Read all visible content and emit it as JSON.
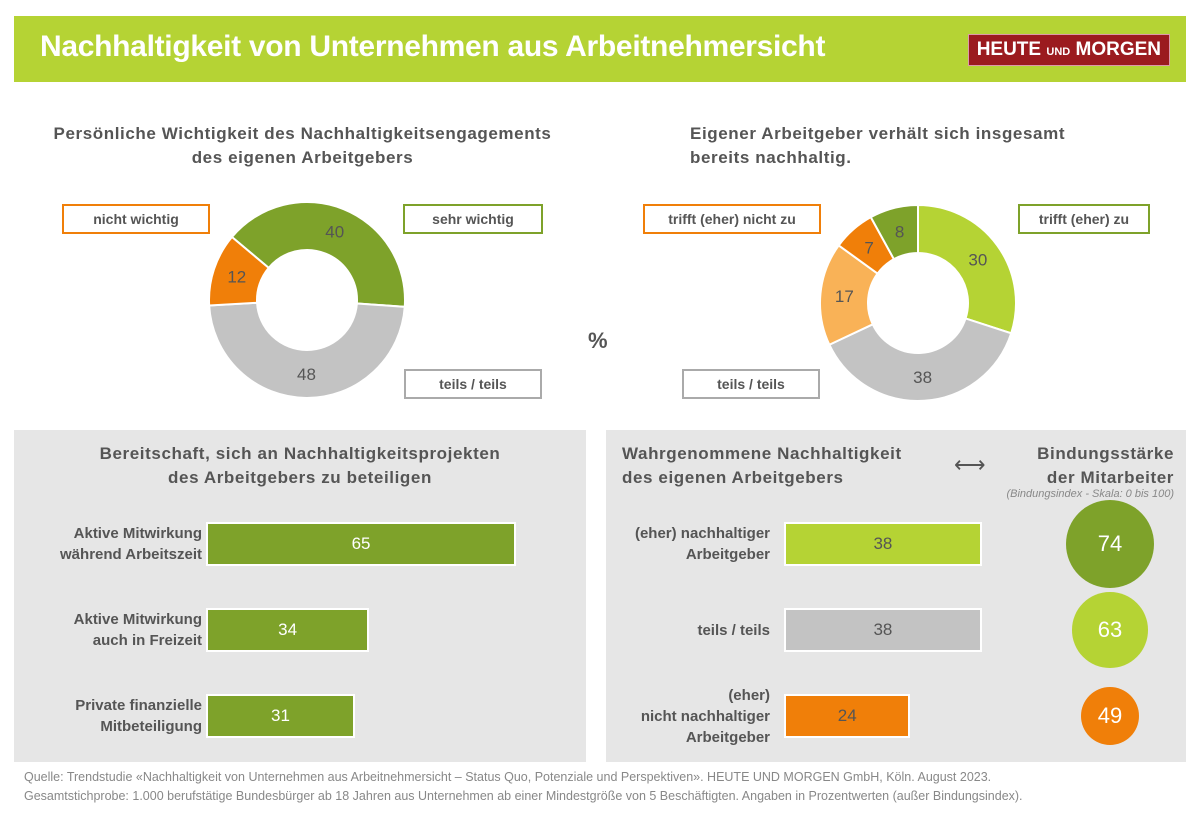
{
  "header": {
    "title": "Nachhaltigkeit von Unternehmen aus Arbeitnehmersicht",
    "logo": "HEUTE UND MORGEN"
  },
  "colors": {
    "header_green": "#b5d334",
    "dark_green": "#7ea22a",
    "light_green": "#b5d334",
    "orange": "#f07f09",
    "light_orange": "#f9b257",
    "gray": "#c3c3c3",
    "panel": "#e6e6e6"
  },
  "percent_sign": "%",
  "chart_data": [
    {
      "type": "pie",
      "variant": "donut",
      "title": "Persönliche Wichtigkeit des Nachhaltigkeitsengagements des eigenen Arbeitgebers",
      "title_lines": [
        "Persönliche Wichtigkeit des Nachhaltigkeitsengagements",
        "des eigenen Arbeitgebers"
      ],
      "slices": [
        {
          "label": "sehr wichtig",
          "value": 40,
          "color": "#7ea22a"
        },
        {
          "label": "teils / teils",
          "value": 48,
          "color": "#c3c3c3"
        },
        {
          "label": "nicht wichtig",
          "value": 12,
          "color": "#f07f09"
        }
      ]
    },
    {
      "type": "pie",
      "variant": "donut",
      "title": "Eigener Arbeitgeber verhält sich insgesamt bereits nachhaltig.",
      "title_lines": [
        "Eigener Arbeitgeber verhält sich insgesamt",
        "bereits nachhaltig."
      ],
      "legend": [
        "trifft (eher) nicht zu",
        "trifft (eher) zu",
        "teils / teils"
      ],
      "slices": [
        {
          "value": 30,
          "color": "#b5d334"
        },
        {
          "value": 38,
          "color": "#c3c3c3"
        },
        {
          "value": 17,
          "color": "#f9b257"
        },
        {
          "value": 7,
          "color": "#f07f09"
        },
        {
          "value": 8,
          "color": "#7ea22a"
        }
      ]
    },
    {
      "type": "bar",
      "orientation": "horizontal",
      "title_lines": [
        "Bereitschaft, sich an Nachhaltigkeitsprojekten",
        "des Arbeitgebers  zu beteiligen"
      ],
      "categories": [
        [
          "Aktive Mitwirkung",
          "während Arbeitszeit"
        ],
        [
          "Aktive Mitwirkung",
          "auch in Freizeit"
        ],
        [
          "Private finanzielle",
          "Mitbeteiligung"
        ]
      ],
      "values": [
        65,
        34,
        31
      ],
      "color": "#7ea22a"
    },
    {
      "type": "bar",
      "orientation": "horizontal",
      "title_lines": [
        "Wahrgenommene  Nachhaltigkeit",
        "des eigenen  Arbeitgebers"
      ],
      "right_title_lines": [
        "Bindungsstärke",
        "der Mitarbeiter"
      ],
      "right_subtitle": "(Bindungsindex - Skala: 0 bis 100)",
      "categories": [
        [
          "(eher) nachhaltiger",
          "Arbeitgeber"
        ],
        [
          "teils / teils"
        ],
        [
          "(eher)",
          "nicht nachhaltiger",
          "Arbeitgeber"
        ]
      ],
      "values": [
        38,
        38,
        24
      ],
      "colors": [
        "#b5d334",
        "#c3c3c3",
        "#f07f09"
      ],
      "bindungsindex": [
        74,
        63,
        49
      ],
      "index_colors": [
        "#7ea22a",
        "#b5d334",
        "#f07f09"
      ]
    }
  ],
  "footer": {
    "line1": "Quelle: Trendstudie «Nachhaltigkeit von Unternehmen aus Arbeitnehmersicht – Status Quo, Potenziale und Perspektiven». HEUTE UND MORGEN GmbH, Köln. August 2023.",
    "line2": "Gesamtstichprobe: 1.000 berufstätige Bundesbürger ab 18 Jahren aus Unternehmen ab einer Mindestgröße von 5 Beschäftigten. Angaben in Prozentwerten (außer Bindungsindex)."
  }
}
